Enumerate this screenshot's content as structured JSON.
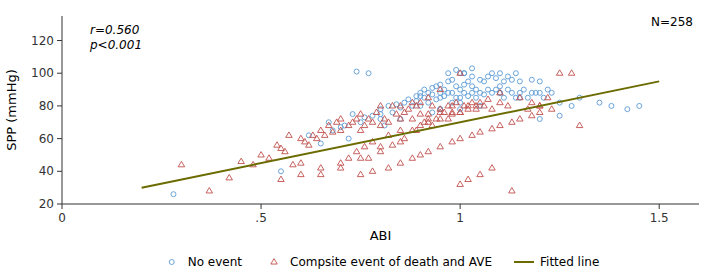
{
  "chart_data": {
    "type": "scatter",
    "xlabel": "ABI",
    "ylabel": "SPP (mmHg)",
    "annotations": [
      "r=0.560\np<0.001",
      "N=258"
    ],
    "xlim": [
      0,
      1.6
    ],
    "ylim": [
      20,
      135
    ],
    "xticks": [
      0,
      {
        "value": 0.5,
        "label": ".5"
      },
      1,
      1.5
    ],
    "yticks": [
      20,
      40,
      60,
      80,
      100,
      120
    ],
    "grid": false,
    "legend": "bottom",
    "series": [
      {
        "name": "No event",
        "type": "scatter",
        "marker": "circle",
        "color": "#5b9bd5",
        "x": [
          0.28,
          0.55,
          0.62,
          0.65,
          0.68,
          0.7,
          0.72,
          0.73,
          0.75,
          0.76,
          0.78,
          0.8,
          0.8,
          0.82,
          0.83,
          0.84,
          0.85,
          0.86,
          0.87,
          0.88,
          0.89,
          0.89,
          0.9,
          0.9,
          0.91,
          0.91,
          0.92,
          0.92,
          0.93,
          0.93,
          0.94,
          0.94,
          0.95,
          0.95,
          0.95,
          0.96,
          0.96,
          0.97,
          0.97,
          0.98,
          0.98,
          0.98,
          0.99,
          0.99,
          1.0,
          1.0,
          1.0,
          1.0,
          1.01,
          1.01,
          1.01,
          1.02,
          1.02,
          1.03,
          1.03,
          1.03,
          1.04,
          1.04,
          1.05,
          1.05,
          1.06,
          1.06,
          1.07,
          1.07,
          1.08,
          1.08,
          1.09,
          1.09,
          1.1,
          1.1,
          1.1,
          1.11,
          1.11,
          1.12,
          1.12,
          1.13,
          1.13,
          1.14,
          1.14,
          1.15,
          1.15,
          1.16,
          1.17,
          1.18,
          1.18,
          1.19,
          1.2,
          1.2,
          1.21,
          1.22,
          1.23,
          1.25,
          1.28,
          1.3,
          1.35,
          1.38,
          1.42,
          1.45,
          0.67,
          0.71,
          0.8,
          0.85,
          0.9,
          0.95,
          1.0,
          1.05,
          1.1,
          1.15,
          1.2,
          1.25,
          0.93,
          0.95,
          0.97,
          0.99,
          1.01,
          1.03,
          0.74,
          0.77,
          0.81
        ],
        "values": [
          26,
          40,
          62,
          57,
          65,
          67,
          60,
          75,
          70,
          73,
          74,
          72,
          78,
          80,
          76,
          81,
          79,
          82,
          84,
          80,
          83,
          86,
          86,
          88,
          85,
          90,
          82,
          88,
          87,
          91,
          84,
          92,
          88,
          85,
          93,
          86,
          90,
          88,
          95,
          82,
          88,
          96,
          85,
          92,
          78,
          85,
          90,
          100,
          88,
          93,
          100,
          86,
          95,
          88,
          92,
          98,
          85,
          90,
          88,
          96,
          87,
          95,
          90,
          98,
          88,
          100,
          90,
          97,
          88,
          92,
          100,
          85,
          95,
          90,
          98,
          88,
          96,
          85,
          100,
          88,
          95,
          90,
          85,
          88,
          96,
          88,
          88,
          95,
          85,
          90,
          88,
          82,
          80,
          85,
          82,
          80,
          78,
          80,
          70,
          68,
          75,
          72,
          80,
          78,
          82,
          80,
          88,
          85,
          72,
          74,
          76,
          78,
          100,
          102,
          100,
          103,
          101,
          100,
          68
        ]
      },
      {
        "name": "Compsite event of death and AVE",
        "type": "scatter",
        "marker": "triangle",
        "color": "#c0504d",
        "x": [
          0.3,
          0.37,
          0.42,
          0.45,
          0.48,
          0.5,
          0.52,
          0.54,
          0.55,
          0.56,
          0.57,
          0.58,
          0.6,
          0.61,
          0.62,
          0.63,
          0.64,
          0.65,
          0.66,
          0.67,
          0.68,
          0.69,
          0.7,
          0.7,
          0.72,
          0.73,
          0.74,
          0.75,
          0.75,
          0.76,
          0.77,
          0.78,
          0.79,
          0.8,
          0.8,
          0.81,
          0.82,
          0.83,
          0.84,
          0.85,
          0.85,
          0.86,
          0.87,
          0.88,
          0.89,
          0.9,
          0.9,
          0.91,
          0.92,
          0.93,
          0.94,
          0.95,
          0.96,
          0.97,
          0.98,
          0.99,
          1.0,
          1.0,
          1.01,
          1.02,
          1.03,
          1.04,
          1.05,
          1.06,
          1.08,
          1.1,
          1.12,
          1.15,
          1.18,
          1.2,
          1.22,
          1.25,
          1.28,
          1.3,
          0.6,
          0.65,
          0.7,
          0.75,
          0.8,
          0.85,
          0.88,
          0.92,
          0.95,
          0.98,
          1.02,
          0.75,
          0.78,
          0.82,
          0.85,
          0.88,
          0.9,
          0.92,
          0.95,
          0.98,
          1.0,
          1.03,
          1.05,
          1.08,
          1.1,
          1.13,
          1.15,
          1.18,
          1.2,
          1.23,
          0.55,
          0.6,
          0.65,
          0.7,
          0.72,
          0.74,
          0.76,
          0.78,
          0.82,
          0.85,
          0.9,
          0.92,
          0.95,
          0.98,
          1.0,
          1.02,
          1.05,
          1.08,
          0.77,
          0.8,
          0.83,
          0.86,
          0.89,
          0.93,
          0.97,
          1.0,
          1.04,
          1.07,
          1.1,
          1.13,
          1.17,
          1.2,
          0.88,
          0.92,
          0.95
        ],
        "values": [
          44,
          28,
          36,
          46,
          44,
          50,
          48,
          56,
          54,
          52,
          62,
          44,
          60,
          58,
          56,
          62,
          60,
          65,
          62,
          68,
          64,
          70,
          65,
          72,
          68,
          70,
          72,
          65,
          75,
          68,
          72,
          70,
          76,
          68,
          80,
          72,
          70,
          80,
          75,
          72,
          80,
          76,
          78,
          72,
          80,
          75,
          82,
          70,
          75,
          80,
          72,
          78,
          76,
          80,
          75,
          82,
          76,
          100,
          80,
          78,
          82,
          78,
          82,
          80,
          78,
          82,
          80,
          85,
          82,
          80,
          85,
          100,
          100,
          68,
          45,
          38,
          42,
          48,
          55,
          58,
          65,
          70,
          72,
          76,
          80,
          38,
          40,
          42,
          45,
          48,
          50,
          52,
          55,
          58,
          60,
          62,
          64,
          66,
          68,
          70,
          72,
          74,
          76,
          78,
          35,
          38,
          42,
          45,
          48,
          52,
          55,
          58,
          62,
          65,
          68,
          72,
          76,
          80,
          32,
          35,
          38,
          42,
          48,
          52,
          56,
          60,
          65,
          68,
          72,
          76,
          80,
          84,
          88,
          28,
          78,
          80,
          82,
          85,
          90
        ]
      },
      {
        "name": "Fitted line",
        "type": "line",
        "line_style": "solid",
        "color": "#6b6b00",
        "x": [
          0.2,
          1.5
        ],
        "values": [
          30,
          95
        ]
      }
    ]
  }
}
